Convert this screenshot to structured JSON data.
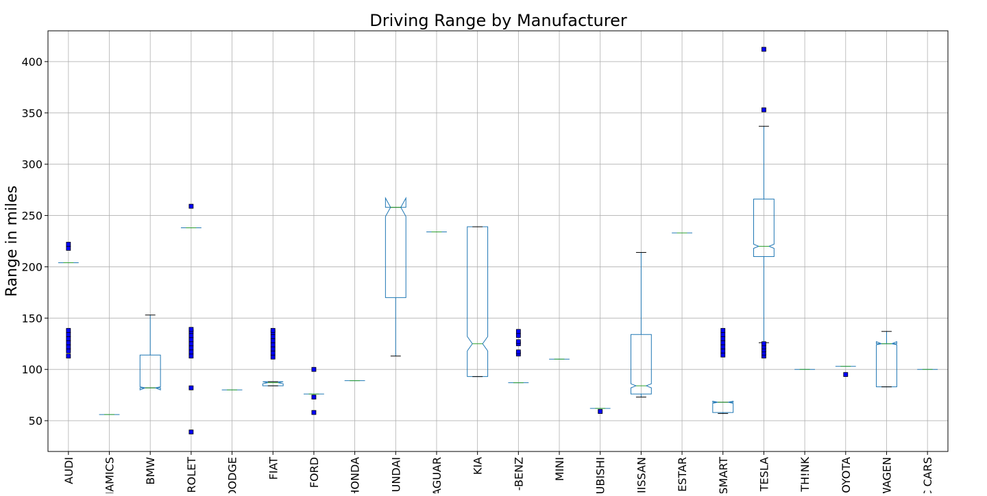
{
  "chart_data": {
    "type": "boxplot",
    "title": "Driving Range by Manufacturer",
    "ylabel": "Range in miles",
    "xlabel": "",
    "ylim": [
      20,
      430
    ],
    "yticks": [
      50,
      100,
      150,
      200,
      250,
      300,
      350,
      400
    ],
    "grid": true,
    "notched": true,
    "categories": [
      "AUDI",
      "NAMICS",
      "BMW",
      "ROLET",
      "DODGE",
      "FIAT",
      "FORD",
      "HONDA",
      "UNDAI",
      "AGUAR",
      "KIA",
      "-BENZ",
      "MINI",
      "UBISHI",
      "IISSAN",
      "ESTAR",
      "SMART",
      "TESLA",
      "TH!NK",
      "OYOTA",
      "WAGEN",
      "C CARS"
    ],
    "boxes": [
      {
        "q1": 204,
        "median": 204,
        "q3": 204,
        "whislo": 204,
        "whishi": 204,
        "notchlo": 204,
        "notchhi": 204,
        "fliers": [
          113,
          118,
          122,
          126,
          130,
          134,
          138,
          218,
          222
        ]
      },
      {
        "q1": 56,
        "median": 56,
        "q3": 56,
        "whislo": 56,
        "whishi": 56,
        "notchlo": 56,
        "notchhi": 56,
        "fliers": []
      },
      {
        "q1": 82,
        "median": 82,
        "q3": 114,
        "whislo": 82,
        "whishi": 153,
        "notchlo": 80,
        "notchhi": 83,
        "fliers": []
      },
      {
        "q1": 238,
        "median": 238,
        "q3": 238,
        "whislo": 238,
        "whishi": 238,
        "notchlo": 238,
        "notchhi": 238,
        "fliers": [
          39,
          82,
          113,
          117,
          121,
          125,
          129,
          133,
          137,
          139,
          259
        ]
      },
      {
        "q1": 80,
        "median": 80,
        "q3": 80,
        "whislo": 80,
        "whishi": 80,
        "notchlo": 80,
        "notchhi": 80,
        "fliers": []
      },
      {
        "q1": 84,
        "median": 87,
        "q3": 88,
        "whislo": 84,
        "whishi": 88,
        "notchlo": 86,
        "notchhi": 88,
        "fliers": [
          112,
          116,
          120,
          124,
          128,
          132,
          136,
          138
        ]
      },
      {
        "q1": 76,
        "median": 76,
        "q3": 76,
        "whislo": 76,
        "whishi": 76,
        "notchlo": 76,
        "notchhi": 76,
        "fliers": [
          58,
          73,
          100
        ]
      },
      {
        "q1": 89,
        "median": 89,
        "q3": 89,
        "whislo": 89,
        "whishi": 89,
        "notchlo": 89,
        "notchhi": 89,
        "fliers": []
      },
      {
        "q1": 170,
        "median": 258,
        "q3": 258,
        "whislo": 113,
        "whishi": 258,
        "notchlo": 249,
        "notchhi": 267,
        "fliers": []
      },
      {
        "q1": 234,
        "median": 234,
        "q3": 234,
        "whislo": 234,
        "whishi": 234,
        "notchlo": 234,
        "notchhi": 234,
        "fliers": []
      },
      {
        "q1": 93,
        "median": 125,
        "q3": 239,
        "whislo": 93,
        "whishi": 239,
        "notchlo": 118,
        "notchhi": 132,
        "fliers": []
      },
      {
        "q1": 87,
        "median": 87,
        "q3": 87,
        "whislo": 87,
        "whishi": 87,
        "notchlo": 87,
        "notchhi": 87,
        "fliers": [
          115,
          117,
          125,
          127,
          133,
          137
        ]
      },
      {
        "q1": 110,
        "median": 110,
        "q3": 110,
        "whislo": 110,
        "whishi": 110,
        "notchlo": 110,
        "notchhi": 110,
        "fliers": []
      },
      {
        "q1": 62,
        "median": 62,
        "q3": 62,
        "whislo": 62,
        "whishi": 62,
        "notchlo": 62,
        "notchhi": 62,
        "fliers": [
          59
        ]
      },
      {
        "q1": 76,
        "median": 84,
        "q3": 134,
        "whislo": 73,
        "whishi": 214,
        "notchlo": 82,
        "notchhi": 86,
        "fliers": []
      },
      {
        "q1": 233,
        "median": 233,
        "q3": 233,
        "whislo": 233,
        "whishi": 233,
        "notchlo": 233,
        "notchhi": 233,
        "fliers": []
      },
      {
        "q1": 58,
        "median": 68,
        "q3": 68,
        "whislo": 57,
        "whishi": 68,
        "notchlo": 67,
        "notchhi": 69,
        "fliers": [
          114,
          118,
          122,
          126,
          130,
          134,
          138
        ]
      },
      {
        "q1": 210,
        "median": 220,
        "q3": 266,
        "whislo": 126,
        "whishi": 337,
        "notchlo": 218,
        "notchhi": 222,
        "fliers": [
          113,
          116,
          119,
          122,
          125,
          353,
          412
        ]
      },
      {
        "q1": 100,
        "median": 100,
        "q3": 100,
        "whislo": 100,
        "whishi": 100,
        "notchlo": 100,
        "notchhi": 100,
        "fliers": []
      },
      {
        "q1": 103,
        "median": 103,
        "q3": 103,
        "whislo": 103,
        "whishi": 103,
        "notchlo": 103,
        "notchhi": 103,
        "fliers": [
          95
        ]
      },
      {
        "q1": 83,
        "median": 125,
        "q3": 125,
        "whislo": 83,
        "whishi": 137,
        "notchlo": 124,
        "notchhi": 127,
        "fliers": []
      },
      {
        "q1": 100,
        "median": 100,
        "q3": 100,
        "whislo": 100,
        "whishi": 100,
        "notchlo": 100,
        "notchhi": 100,
        "fliers": []
      }
    ]
  }
}
